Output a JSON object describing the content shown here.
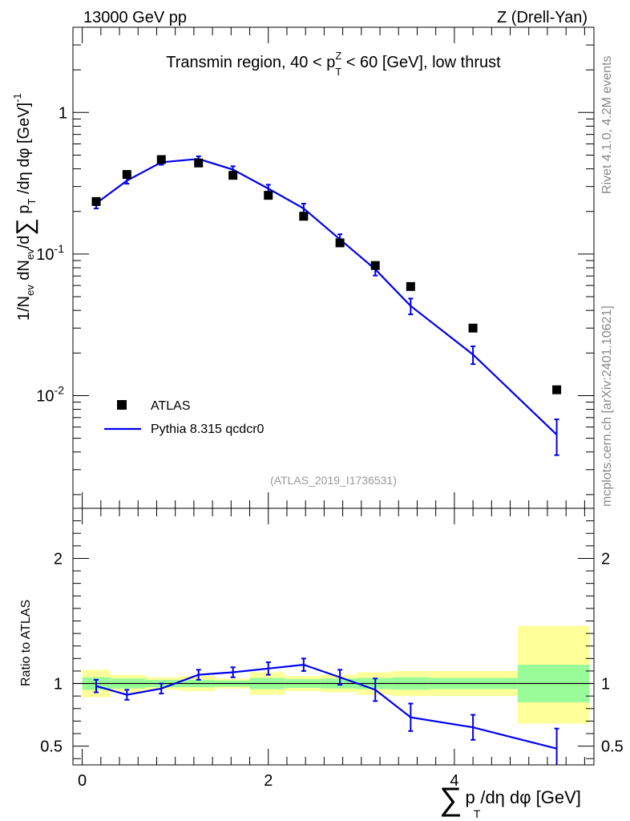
{
  "header": {
    "left": "13000 GeV pp",
    "right": "Z (Drell-Yan)"
  },
  "side_text": {
    "rivet": "Rivet 4.1.0,  4.2M events",
    "mcplots": "mcplots.cern.ch [arXiv:2401.10621]"
  },
  "colors": {
    "data": "#000000",
    "mc": "#0000ee",
    "band_inner": "#98fb98",
    "band_outer": "#ffff99",
    "watermark": "#999999",
    "side_text": "#888888"
  },
  "chart_data": [
    {
      "panel": "main",
      "type": "scatter",
      "title_parts": {
        "before": "Transmin region, 40 < p",
        "sup": "Z",
        "sub": "T",
        "after": " < 60 [GeV], low thrust"
      },
      "ylabel": "1/N_ev dN_ev/d∑p_T/dη dφ [GeV]^-1",
      "ylabel_parts": {
        "a": "1/N",
        "a_sub": "ev",
        "b": " dN",
        "b_sub": "ev",
        "c": "/d",
        "sum": "∑",
        "d": " p",
        "d_sub": "T",
        "e": " /dη dφ  [GeV]",
        "e_sup": "-1"
      },
      "yscale": "log",
      "ylim": [
        0.0016,
        4.0
      ],
      "xlim": [
        -0.1,
        5.5
      ],
      "yticks": [
        {
          "value": 0.01,
          "base": "10",
          "exp": "-2"
        },
        {
          "value": 0.1,
          "base": "10",
          "exp": "-1"
        },
        {
          "value": 1,
          "base": "1",
          "exp": ""
        }
      ],
      "watermark": "(ATLAS_2019_I1736531)",
      "legend": {
        "position": "bottom-left",
        "entries": [
          {
            "label": "ATLAS",
            "marker": "square"
          },
          {
            "label": "Pythia 8.315 qcdcr0",
            "marker": "line"
          }
        ]
      },
      "series": [
        {
          "name": "ATLAS",
          "x": [
            0.15,
            0.48,
            0.85,
            1.25,
            1.62,
            2.0,
            2.38,
            2.77,
            3.15,
            3.53,
            4.2,
            5.1
          ],
          "values": [
            0.235,
            0.365,
            0.465,
            0.44,
            0.36,
            0.26,
            0.185,
            0.12,
            0.083,
            0.059,
            0.03,
            0.011
          ]
        },
        {
          "name": "Pythia 8.315 qcdcr0",
          "x": [
            0.15,
            0.48,
            0.85,
            1.25,
            1.62,
            2.0,
            2.38,
            2.77,
            3.15,
            3.53,
            4.2,
            5.1
          ],
          "values": [
            0.228,
            0.33,
            0.445,
            0.47,
            0.395,
            0.29,
            0.21,
            0.127,
            0.078,
            0.043,
            0.0195,
            0.0053
          ],
          "errors": [
            0.018,
            0.016,
            0.018,
            0.02,
            0.022,
            0.019,
            0.017,
            0.011,
            0.0075,
            0.0055,
            0.0028,
            0.0015
          ]
        }
      ]
    },
    {
      "panel": "ratio",
      "type": "line",
      "ylabel": "Ratio to ATLAS",
      "xlabel": "∑p_T/dη dφ [GeV]",
      "xlabel_parts": {
        "sum": "∑",
        "p": "p",
        "sub": "T",
        "rest": "/dη dφ [GeV]"
      },
      "ylim": [
        0.35,
        2.4
      ],
      "xlim": [
        -0.1,
        5.5
      ],
      "yticks": [
        0.5,
        1,
        2
      ],
      "ytick_labels": [
        "0.5",
        "1",
        "2"
      ],
      "xticks": [
        0,
        2,
        4
      ],
      "xtick_labels": [
        "0",
        "2",
        "4"
      ],
      "bins": [
        {
          "lo": 0.0,
          "hi": 0.3,
          "inner": [
            0.95,
            1.05
          ],
          "outer": [
            0.89,
            1.11
          ]
        },
        {
          "lo": 0.3,
          "hi": 0.68,
          "inner": [
            0.96,
            1.04
          ],
          "outer": [
            0.93,
            1.07
          ]
        },
        {
          "lo": 0.68,
          "hi": 1.05,
          "inner": [
            0.97,
            1.03
          ],
          "outer": [
            0.95,
            1.05
          ]
        },
        {
          "lo": 1.05,
          "hi": 1.43,
          "inner": [
            0.97,
            1.03
          ],
          "outer": [
            0.94,
            1.06
          ]
        },
        {
          "lo": 1.43,
          "hi": 1.8,
          "inner": [
            0.975,
            1.025
          ],
          "outer": [
            0.96,
            1.04
          ]
        },
        {
          "lo": 1.8,
          "hi": 2.18,
          "inner": [
            0.955,
            1.045
          ],
          "outer": [
            0.91,
            1.09
          ]
        },
        {
          "lo": 2.18,
          "hi": 2.56,
          "inner": [
            0.965,
            1.035
          ],
          "outer": [
            0.94,
            1.06
          ]
        },
        {
          "lo": 2.56,
          "hi": 2.95,
          "inner": [
            0.96,
            1.04
          ],
          "outer": [
            0.93,
            1.07
          ]
        },
        {
          "lo": 2.95,
          "hi": 3.33,
          "inner": [
            0.955,
            1.045
          ],
          "outer": [
            0.91,
            1.09
          ]
        },
        {
          "lo": 3.33,
          "hi": 3.72,
          "inner": [
            0.95,
            1.05
          ],
          "outer": [
            0.9,
            1.1
          ]
        },
        {
          "lo": 3.72,
          "hi": 4.68,
          "inner": [
            0.955,
            1.045
          ],
          "outer": [
            0.9,
            1.1
          ]
        },
        {
          "lo": 4.68,
          "hi": 5.45,
          "inner": [
            0.85,
            1.15
          ],
          "outer": [
            0.68,
            1.46
          ]
        }
      ],
      "series": [
        {
          "name": "Pythia 8.315 qcdcr0 / ATLAS",
          "x": [
            0.15,
            0.48,
            0.85,
            1.25,
            1.62,
            2.0,
            2.38,
            2.77,
            3.15,
            3.53,
            4.2,
            5.1
          ],
          "values": [
            0.98,
            0.91,
            0.96,
            1.07,
            1.09,
            1.12,
            1.15,
            1.05,
            0.95,
            0.73,
            0.65,
            0.48
          ],
          "errors": [
            0.05,
            0.04,
            0.04,
            0.04,
            0.04,
            0.05,
            0.05,
            0.06,
            0.09,
            0.11,
            0.1,
            0.16
          ]
        }
      ]
    }
  ]
}
